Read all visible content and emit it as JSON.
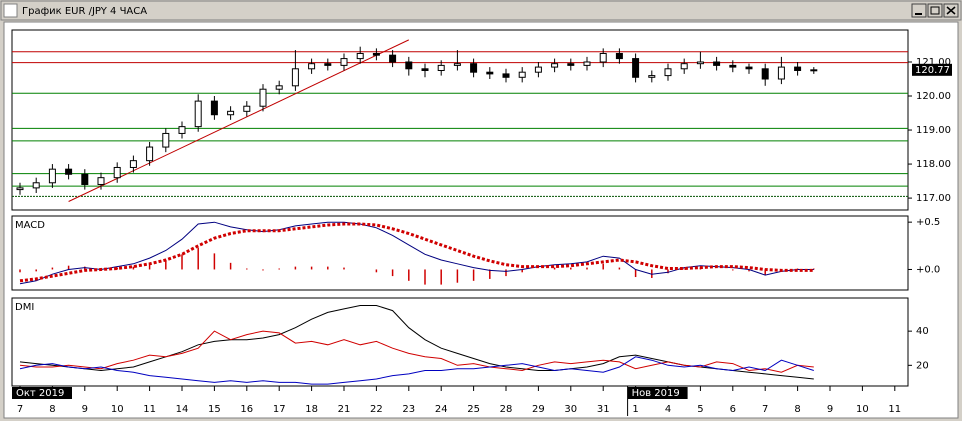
{
  "chart_data": {
    "type": "candlestick",
    "title": "График EUR /JPY  4 ЧАСА",
    "categories": [
      "7",
      null,
      "8",
      null,
      "9",
      null,
      "10",
      null,
      "11",
      null,
      "14",
      null,
      "15",
      null,
      "16",
      null,
      "17",
      null,
      "18",
      null,
      "21",
      null,
      "22",
      null,
      "23",
      null,
      "24",
      null,
      "25",
      null,
      "28",
      null,
      "29",
      null,
      "30",
      null,
      "31",
      null,
      "1",
      null,
      "4",
      null,
      "5",
      null,
      "6",
      null,
      "7",
      null,
      "8",
      null,
      "9",
      null,
      "10",
      null,
      "11",
      null
    ],
    "periods": [
      {
        "label": "Окт 2019",
        "at": 0
      },
      {
        "label": "Нов 2019",
        "at": 38
      }
    ],
    "open": [
      117.25,
      117.3,
      117.45,
      117.85,
      117.7,
      117.4,
      117.6,
      117.9,
      118.1,
      118.5,
      118.9,
      119.1,
      119.85,
      119.45,
      119.55,
      119.7,
      120.2,
      120.3,
      120.8,
      120.95,
      120.9,
      121.1,
      121.25,
      121.2,
      121.0,
      120.8,
      120.75,
      120.9,
      120.95,
      120.7,
      120.65,
      120.55,
      120.7,
      120.85,
      120.95,
      120.9,
      121.0,
      121.25,
      121.1,
      120.55,
      120.6,
      120.8,
      120.95,
      121.0,
      120.9,
      120.85,
      120.8,
      120.5,
      120.85,
      120.75,
      null,
      null,
      null,
      null,
      null,
      null
    ],
    "high": [
      117.45,
      117.6,
      118.0,
      118.0,
      117.85,
      117.75,
      118.05,
      118.25,
      118.65,
      119.05,
      119.25,
      120.05,
      120.0,
      119.7,
      119.85,
      120.35,
      120.45,
      121.35,
      121.1,
      121.1,
      121.25,
      121.45,
      121.4,
      121.35,
      121.15,
      120.95,
      121.05,
      121.35,
      121.1,
      120.85,
      120.8,
      120.85,
      121.0,
      121.1,
      121.1,
      121.15,
      121.4,
      121.4,
      121.25,
      120.75,
      120.95,
      121.1,
      121.3,
      121.15,
      121.05,
      120.95,
      120.95,
      121.15,
      121.0,
      120.85,
      null,
      null,
      null,
      null,
      null,
      null
    ],
    "low": [
      117.1,
      117.15,
      117.3,
      117.55,
      117.25,
      117.25,
      117.45,
      117.75,
      117.95,
      118.35,
      118.75,
      118.95,
      119.3,
      119.3,
      119.4,
      119.55,
      120.05,
      120.15,
      120.65,
      120.75,
      120.75,
      120.95,
      121.05,
      120.85,
      120.6,
      120.55,
      120.6,
      120.75,
      120.55,
      120.5,
      120.4,
      120.4,
      120.55,
      120.7,
      120.75,
      120.75,
      120.85,
      120.95,
      120.4,
      120.4,
      120.45,
      120.65,
      120.8,
      120.75,
      120.7,
      120.65,
      120.3,
      120.35,
      120.6,
      120.65,
      null,
      null,
      null,
      null,
      null,
      null
    ],
    "close": [
      117.3,
      117.45,
      117.85,
      117.7,
      117.4,
      117.6,
      117.9,
      118.1,
      118.5,
      118.9,
      119.1,
      119.85,
      119.45,
      119.55,
      119.7,
      120.2,
      120.3,
      120.8,
      120.95,
      120.9,
      121.1,
      121.25,
      121.2,
      121.0,
      120.8,
      120.75,
      120.9,
      120.95,
      120.7,
      120.65,
      120.55,
      120.7,
      120.85,
      120.95,
      120.9,
      121.0,
      121.25,
      121.1,
      120.55,
      120.6,
      120.8,
      120.95,
      121.0,
      120.9,
      120.85,
      120.8,
      120.5,
      120.85,
      120.75,
      120.77,
      null,
      null,
      null,
      null,
      null,
      null
    ],
    "ylim": [
      116.65,
      121.94
    ],
    "yticks": [
      {
        "value": 117,
        "label": "117.00"
      },
      {
        "value": 118,
        "label": "118.00"
      },
      {
        "value": 119,
        "label": "119.00"
      },
      {
        "value": 120,
        "label": "120.00"
      },
      {
        "value": 121,
        "label": "121.00"
      }
    ],
    "last_price": {
      "value": 120.77,
      "label": "120.77"
    },
    "hlines": [
      {
        "value": 121.3,
        "color": "#c00000"
      },
      {
        "value": 120.98,
        "color": "#c00000"
      },
      {
        "value": 120.08,
        "color": "#008000"
      },
      {
        "value": 119.05,
        "color": "#008000"
      },
      {
        "value": 118.68,
        "color": "#008000"
      },
      {
        "value": 117.72,
        "color": "#008000"
      },
      {
        "value": 117.35,
        "color": "#008000"
      },
      {
        "value": 117.05,
        "color": "#005000"
      }
    ],
    "trendline": {
      "x": [
        3,
        24
      ],
      "values": [
        116.9,
        121.65
      ],
      "color": "#c00000"
    },
    "macd": {
      "type": "line",
      "label": "MACD",
      "ylim": [
        -0.217,
        0.565
      ],
      "yticks": [
        {
          "value": 0.5,
          "label": "+0.5"
        },
        {
          "value": 0,
          "label": "+0.0"
        }
      ],
      "series": [
        {
          "color": "#000080",
          "values": [
            -0.15,
            -0.12,
            -0.05,
            0.0,
            0.02,
            0.0,
            0.03,
            0.06,
            0.12,
            0.2,
            0.32,
            0.48,
            0.5,
            0.45,
            0.42,
            0.4,
            0.42,
            0.46,
            0.48,
            0.5,
            0.5,
            0.48,
            0.44,
            0.36,
            0.26,
            0.16,
            0.1,
            0.06,
            0.02,
            -0.01,
            -0.02,
            0.0,
            0.03,
            0.05,
            0.06,
            0.08,
            0.14,
            0.12,
            0.0,
            -0.05,
            -0.03,
            0.02,
            0.04,
            0.03,
            0.02,
            0.0,
            -0.06,
            -0.02,
            0.0,
            0.0,
            null,
            null,
            null,
            null,
            null,
            null
          ]
        },
        {
          "color": "#d00000",
          "dotted": true,
          "values": [
            -0.12,
            -0.1,
            -0.07,
            -0.04,
            -0.01,
            0.0,
            0.01,
            0.03,
            0.06,
            0.1,
            0.16,
            0.25,
            0.33,
            0.38,
            0.41,
            0.41,
            0.41,
            0.43,
            0.45,
            0.47,
            0.48,
            0.48,
            0.47,
            0.43,
            0.38,
            0.32,
            0.26,
            0.2,
            0.14,
            0.09,
            0.05,
            0.03,
            0.03,
            0.03,
            0.04,
            0.06,
            0.08,
            0.1,
            0.08,
            0.04,
            0.01,
            0.01,
            0.02,
            0.03,
            0.03,
            0.02,
            0.0,
            -0.01,
            -0.01,
            -0.01,
            null,
            null,
            null,
            null,
            null,
            null
          ]
        }
      ],
      "histogram": {
        "color": "#d00000",
        "values": [
          -0.03,
          -0.02,
          0.02,
          0.04,
          0.03,
          0,
          0.02,
          0.03,
          0.06,
          0.1,
          0.16,
          0.23,
          0.17,
          0.07,
          0.01,
          -0.01,
          0.01,
          0.03,
          0.03,
          0.03,
          0.02,
          0,
          -0.03,
          -0.07,
          -0.12,
          -0.16,
          -0.16,
          -0.14,
          -0.12,
          -0.1,
          -0.07,
          -0.03,
          0,
          0.02,
          0.02,
          0.02,
          0.06,
          0.02,
          -0.08,
          -0.09,
          -0.04,
          0.01,
          0.02,
          0,
          -0.01,
          -0.02,
          -0.06,
          -0.01,
          0.01,
          0.01,
          null,
          null,
          null,
          null,
          null,
          null
        ]
      }
    },
    "dmi": {
      "type": "line",
      "label": "DMI",
      "ylim": [
        7.9,
        59.4
      ],
      "yticks": [
        40,
        20
      ],
      "series": [
        {
          "color": "#000000",
          "values": [
            22,
            21,
            20,
            19,
            18,
            17,
            18,
            19,
            22,
            25,
            28,
            32,
            34,
            35,
            35,
            36,
            38,
            42,
            47,
            51,
            53,
            55,
            55,
            52,
            42,
            35,
            30,
            27,
            24,
            21,
            19,
            18,
            17,
            17,
            18,
            19,
            21,
            25,
            26,
            24,
            22,
            20,
            19,
            18,
            17,
            16,
            15,
            14,
            13,
            12,
            null,
            null,
            null,
            null,
            null,
            null
          ]
        },
        {
          "color": "#d00000",
          "values": [
            20,
            19,
            19,
            20,
            19,
            18,
            21,
            23,
            26,
            25,
            27,
            30,
            40,
            35,
            38,
            40,
            39,
            33,
            34,
            32,
            35,
            32,
            34,
            30,
            27,
            25,
            24,
            20,
            21,
            19,
            18,
            17,
            20,
            22,
            21,
            22,
            23,
            22,
            18,
            20,
            22,
            20,
            19,
            22,
            21,
            17,
            18,
            16,
            20,
            19,
            null,
            null,
            null,
            null,
            null,
            null
          ]
        },
        {
          "color": "#0000c0",
          "values": [
            18,
            20,
            21,
            19,
            18,
            19,
            17,
            16,
            14,
            13,
            12,
            11,
            10,
            11,
            10,
            11,
            10,
            10,
            9,
            9,
            10,
            11,
            12,
            14,
            15,
            17,
            17,
            18,
            18,
            19,
            20,
            21,
            19,
            17,
            18,
            17,
            16,
            19,
            25,
            23,
            20,
            19,
            20,
            18,
            17,
            19,
            17,
            23,
            20,
            17,
            null,
            null,
            null,
            null,
            null,
            null
          ]
        }
      ]
    }
  }
}
